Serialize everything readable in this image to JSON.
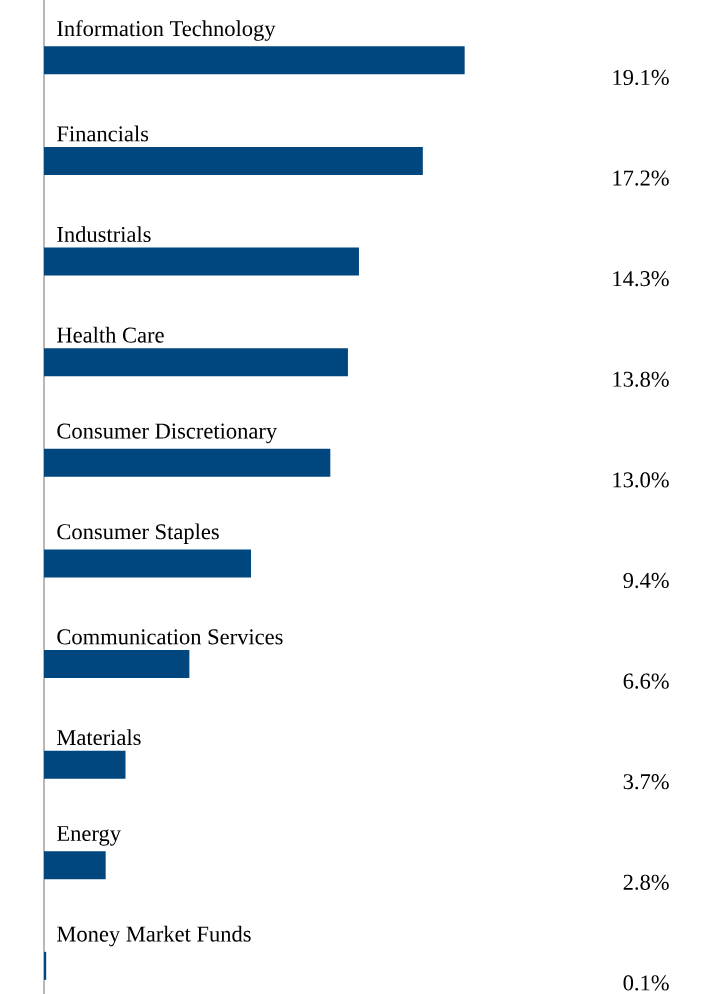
{
  "chart_data": {
    "type": "bar",
    "orientation": "horizontal",
    "color": "#00467f",
    "categories": [
      "Information Technology",
      "Financials",
      "Industrials",
      "Health Care",
      "Consumer Discretionary",
      "Consumer Staples",
      "Communication Services",
      "Materials",
      "Energy",
      "Money Market Funds"
    ],
    "values": [
      19.1,
      17.2,
      14.3,
      13.8,
      13.0,
      9.4,
      6.6,
      3.7,
      2.8,
      0.1
    ],
    "value_labels": [
      "19.1%",
      "17.2%",
      "14.3%",
      "13.8%",
      "13.0%",
      "9.4%",
      "6.6%",
      "3.7%",
      "2.8%",
      "0.1%"
    ]
  }
}
